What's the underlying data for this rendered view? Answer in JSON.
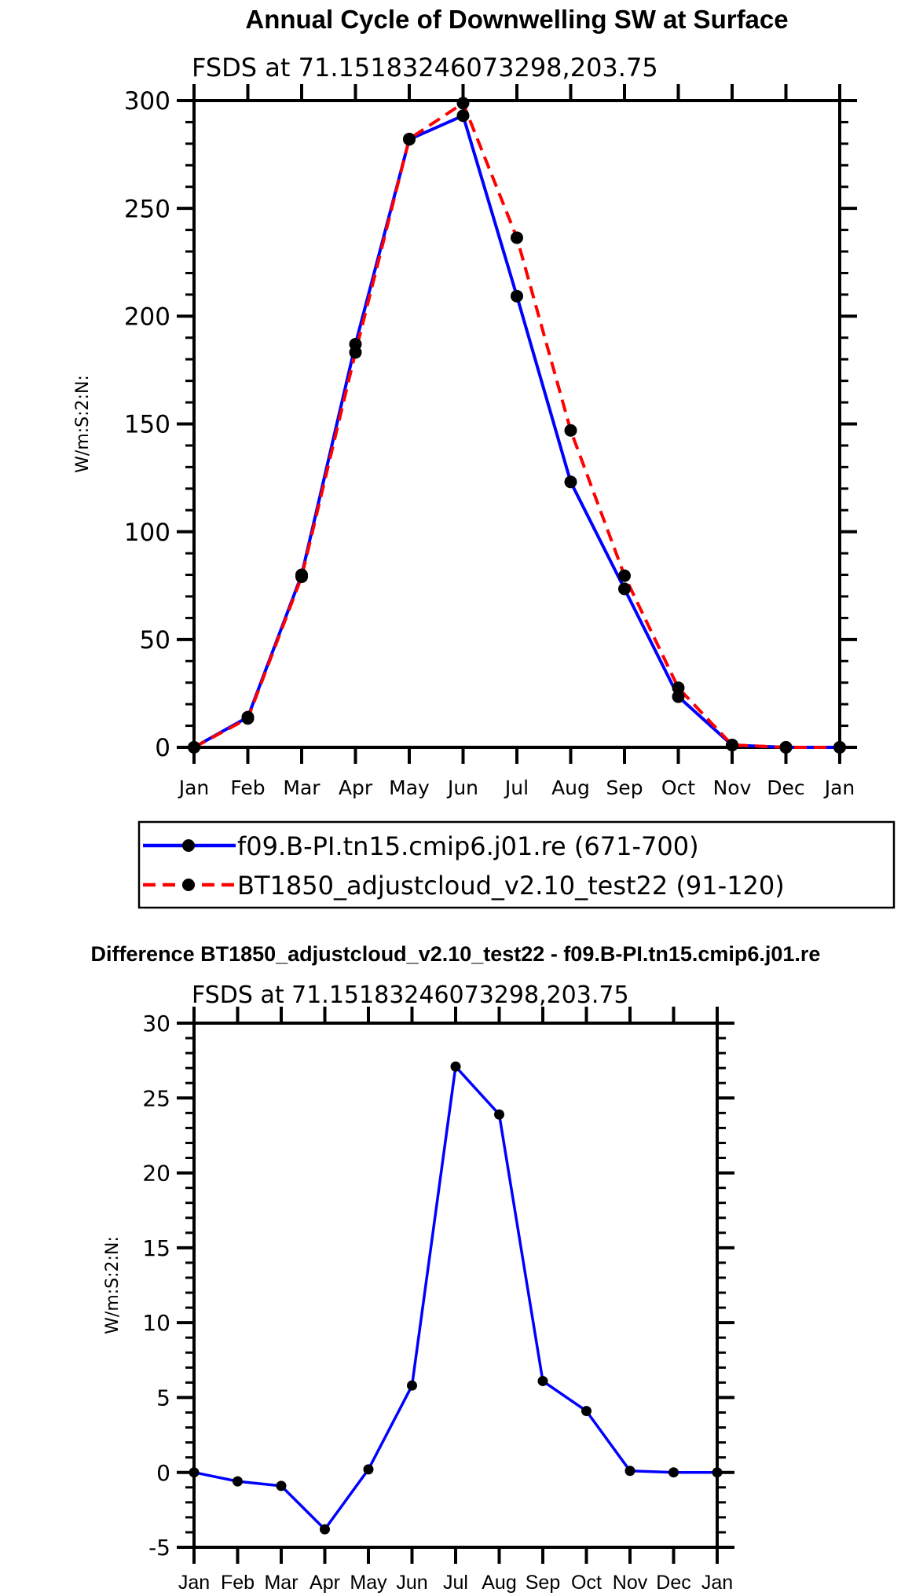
{
  "colors": {
    "series_a": "#0000ff",
    "series_b": "#ff0000",
    "marker": "#000000",
    "axis": "#000000"
  },
  "chart_data": [
    {
      "type": "line",
      "title": "Annual Cycle of Downwelling SW at Surface",
      "subtitle": "FSDS at 71.15183246073298,203.75",
      "xlabel": "",
      "ylabel": "W/m:S:2:N:",
      "categories": [
        "Jan",
        "Feb",
        "Mar",
        "Apr",
        "May",
        "Jun",
        "Jul",
        "Aug",
        "Sep",
        "Oct",
        "Nov",
        "Dec",
        "Jan"
      ],
      "ylim": [
        0,
        300
      ],
      "yticks": [
        0,
        50,
        100,
        150,
        200,
        250,
        300
      ],
      "yminor_step": 10,
      "grid": false,
      "legend_placement": "below",
      "series": [
        {
          "name": "f09.B-PI.tn15.cmip6.j01.re (671-700)",
          "style": "solid",
          "color": "#0000ff",
          "values": [
            0,
            14,
            80,
            187,
            282,
            293,
            209.3,
            123.1,
            73.5,
            23.5,
            1,
            0,
            0
          ]
        },
        {
          "name": "BT1850_adjustcloud_v2.10_test22 (91-120)",
          "style": "dashed",
          "color": "#ff0000",
          "values": [
            0,
            13.4,
            79.1,
            183.2,
            282.2,
            298.8,
            236.4,
            147.0,
            79.6,
            27.6,
            1.1,
            0,
            0
          ]
        }
      ]
    },
    {
      "type": "line",
      "title": "Difference BT1850_adjustcloud_v2.10_test22 - f09.B-PI.tn15.cmip6.j01.re",
      "subtitle": "FSDS at 71.15183246073298,203.75",
      "xlabel": "",
      "ylabel": "W/m:S:2:N:",
      "categories": [
        "Jan",
        "Feb",
        "Mar",
        "Apr",
        "May",
        "Jun",
        "Jul",
        "Aug",
        "Sep",
        "Oct",
        "Nov",
        "Dec",
        "Jan"
      ],
      "ylim": [
        -5,
        30
      ],
      "yticks": [
        -5,
        0,
        5,
        10,
        15,
        20,
        25,
        30
      ],
      "yminor_step": 1,
      "grid": false,
      "series": [
        {
          "name": "difference",
          "style": "solid",
          "color": "#0000ff",
          "values": [
            0,
            -0.6,
            -0.9,
            -3.8,
            0.2,
            5.8,
            27.1,
            23.9,
            6.1,
            4.1,
            0.1,
            0,
            0
          ]
        }
      ]
    }
  ]
}
